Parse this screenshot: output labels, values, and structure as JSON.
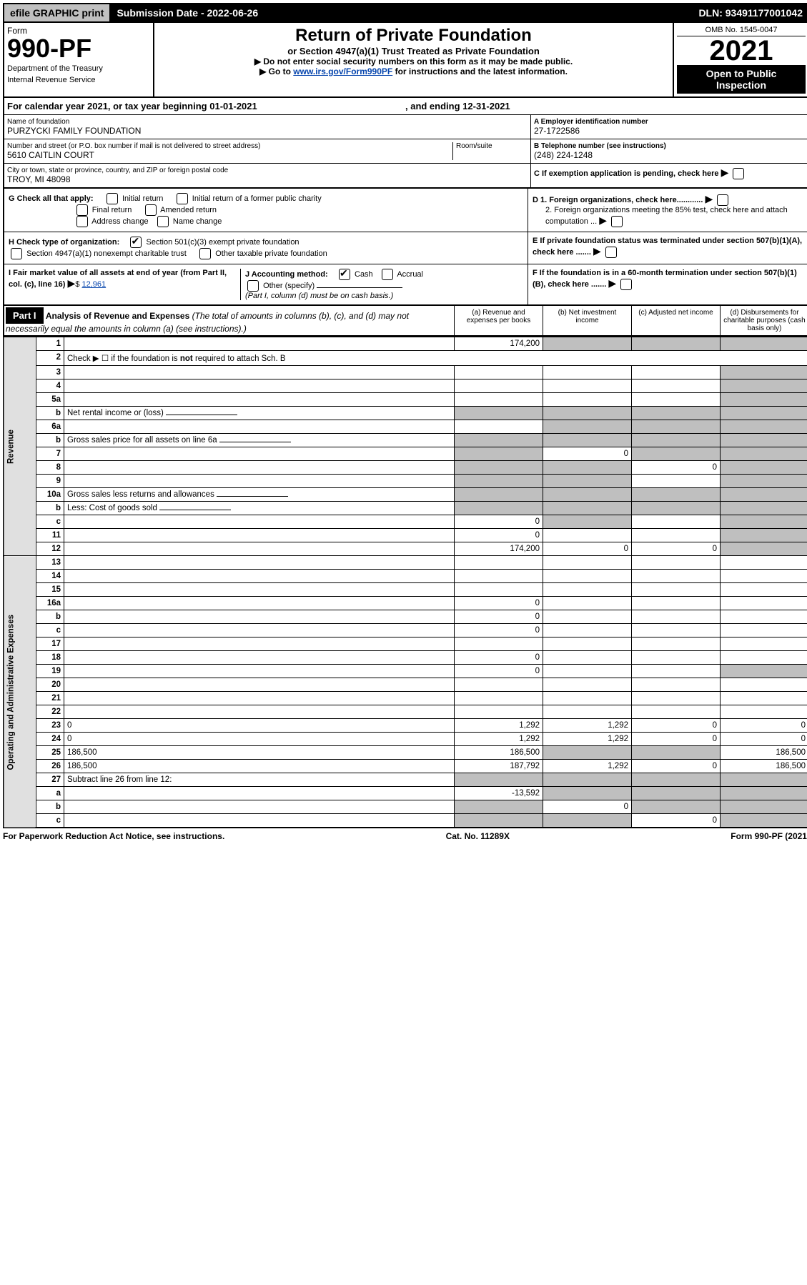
{
  "topbar": {
    "efile": "efile GRAPHIC print",
    "submission": "Submission Date - 2022-06-26",
    "dln": "DLN: 93491177001042"
  },
  "header": {
    "form_label": "Form",
    "form_number": "990-PF",
    "dept1": "Department of the Treasury",
    "dept2": "Internal Revenue Service",
    "title": "Return of Private Foundation",
    "subtitle": "or Section 4947(a)(1) Trust Treated as Private Foundation",
    "instr1": "▶ Do not enter social security numbers on this form as it may be made public.",
    "instr2_pre": "▶ Go to ",
    "instr2_link": "www.irs.gov/Form990PF",
    "instr2_post": " for instructions and the latest information.",
    "omb": "OMB No. 1545-0047",
    "year": "2021",
    "inspection": "Open to Public Inspection"
  },
  "calendar": {
    "text_pre": "For calendar year 2021, or tax year beginning ",
    "begin": "01-01-2021",
    "text_mid": ", and ending ",
    "end": "12-31-2021"
  },
  "entity": {
    "name_label": "Name of foundation",
    "name": "PURZYCKI FAMILY FOUNDATION",
    "addr_label": "Number and street (or P.O. box number if mail is not delivered to street address)",
    "room_label": "Room/suite",
    "addr": "5610 CAITLIN COURT",
    "city_label": "City or town, state or province, country, and ZIP or foreign postal code",
    "city": "TROY, MI  48098",
    "ein_label": "A Employer identification number",
    "ein": "27-1722586",
    "phone_label": "B Telephone number (see instructions)",
    "phone": "(248) 224-1248",
    "c_label": "C If exemption application is pending, check here"
  },
  "checks": {
    "g_label": "G Check all that apply:",
    "g_initial": "Initial return",
    "g_initial2": "Initial return of a former public charity",
    "g_final": "Final return",
    "g_amended": "Amended return",
    "g_addr": "Address change",
    "g_name": "Name change",
    "h_label": "H Check type of organization:",
    "h_501c3": "Section 501(c)(3) exempt private foundation",
    "h_4947": "Section 4947(a)(1) nonexempt charitable trust",
    "h_other": "Other taxable private foundation",
    "i_label": "I Fair market value of all assets at end of year (from Part II, col. (c), line 16)",
    "i_amount": "12,961",
    "j_label": "J Accounting method:",
    "j_cash": "Cash",
    "j_accrual": "Accrual",
    "j_other": "Other (specify)",
    "j_note": "(Part I, column (d) must be on cash basis.)",
    "d1": "D 1. Foreign organizations, check here............",
    "d2": "2. Foreign organizations meeting the 85% test, check here and attach computation ...",
    "e": "E If private foundation status was terminated under section 507(b)(1)(A), check here .......",
    "f": "F If the foundation is in a 60-month termination under section 507(b)(1)(B), check here ......."
  },
  "part1": {
    "label": "Part I",
    "title": "Analysis of Revenue and Expenses",
    "note": "(The total of amounts in columns (b), (c), and (d) may not necessarily equal the amounts in column (a) (see instructions).)",
    "col_a": "(a) Revenue and expenses per books",
    "col_b": "(b) Net investment income",
    "col_c": "(c) Adjusted net income",
    "col_d": "(d) Disbursements for charitable purposes (cash basis only)"
  },
  "revenue_label": "Revenue",
  "expenses_label": "Operating and Administrative Expenses",
  "rows": [
    {
      "n": "1",
      "d": "",
      "a": "174,200",
      "b": "",
      "c": "",
      "grey": [
        "b",
        "c",
        "d"
      ]
    },
    {
      "n": "2",
      "d": "Check ▶ ☐ if the foundation is <b>not</b> required to attach Sch. B",
      "nocols": true
    },
    {
      "n": "3",
      "d": "",
      "a": "",
      "b": "",
      "c": "",
      "grey": [
        "d"
      ]
    },
    {
      "n": "4",
      "d": "",
      "a": "",
      "b": "",
      "c": "",
      "grey": [
        "d"
      ]
    },
    {
      "n": "5a",
      "d": "",
      "a": "",
      "b": "",
      "c": "",
      "grey": [
        "d"
      ]
    },
    {
      "n": "b",
      "d": "Net rental income or (loss)",
      "nocols": true,
      "inline": true
    },
    {
      "n": "6a",
      "d": "",
      "a": "",
      "b": "",
      "c": "",
      "grey": [
        "b",
        "c",
        "d"
      ]
    },
    {
      "n": "b",
      "d": "Gross sales price for all assets on line 6a",
      "nocols": true,
      "inline": true
    },
    {
      "n": "7",
      "d": "",
      "a": "",
      "b": "0",
      "c": "",
      "grey": [
        "a",
        "c",
        "d"
      ]
    },
    {
      "n": "8",
      "d": "",
      "a": "",
      "b": "",
      "c": "0",
      "grey": [
        "a",
        "b",
        "d"
      ]
    },
    {
      "n": "9",
      "d": "",
      "a": "",
      "b": "",
      "c": "",
      "grey": [
        "a",
        "b",
        "d"
      ]
    },
    {
      "n": "10a",
      "d": "Gross sales less returns and allowances",
      "nocols": true,
      "inline": true
    },
    {
      "n": "b",
      "d": "Less: Cost of goods sold",
      "nocols": true,
      "inline": true
    },
    {
      "n": "c",
      "d": "",
      "a": "0",
      "b": "",
      "c": "",
      "grey": [
        "b",
        "d"
      ]
    },
    {
      "n": "11",
      "d": "",
      "a": "0",
      "b": "",
      "c": "",
      "grey": [
        "d"
      ]
    },
    {
      "n": "12",
      "d": "",
      "a": "174,200",
      "b": "0",
      "c": "0",
      "grey": [
        "d"
      ]
    },
    {
      "n": "13",
      "d": "",
      "a": "",
      "b": "",
      "c": ""
    },
    {
      "n": "14",
      "d": "",
      "a": "",
      "b": "",
      "c": ""
    },
    {
      "n": "15",
      "d": "",
      "a": "",
      "b": "",
      "c": ""
    },
    {
      "n": "16a",
      "d": "",
      "a": "0",
      "b": "",
      "c": ""
    },
    {
      "n": "b",
      "d": "",
      "a": "0",
      "b": "",
      "c": ""
    },
    {
      "n": "c",
      "d": "",
      "a": "0",
      "b": "",
      "c": ""
    },
    {
      "n": "17",
      "d": "",
      "a": "",
      "b": "",
      "c": ""
    },
    {
      "n": "18",
      "d": "",
      "a": "0",
      "b": "",
      "c": ""
    },
    {
      "n": "19",
      "d": "",
      "a": "0",
      "b": "",
      "c": "",
      "grey": [
        "d"
      ]
    },
    {
      "n": "20",
      "d": "",
      "a": "",
      "b": "",
      "c": ""
    },
    {
      "n": "21",
      "d": "",
      "a": "",
      "b": "",
      "c": ""
    },
    {
      "n": "22",
      "d": "",
      "a": "",
      "b": "",
      "c": ""
    },
    {
      "n": "23",
      "d": "0",
      "a": "1,292",
      "b": "1,292",
      "c": "0"
    },
    {
      "n": "24",
      "d": "0",
      "a": "1,292",
      "b": "1,292",
      "c": "0"
    },
    {
      "n": "25",
      "d": "186,500",
      "a": "186,500",
      "b": "",
      "c": "",
      "grey": [
        "b",
        "c"
      ]
    },
    {
      "n": "26",
      "d": "186,500",
      "a": "187,792",
      "b": "1,292",
      "c": "0"
    },
    {
      "n": "27",
      "d": "Subtract line 26 from line 12:",
      "nocols": true,
      "allgrey": true
    },
    {
      "n": "a",
      "d": "",
      "a": "-13,592",
      "b": "",
      "c": "",
      "grey": [
        "b",
        "c",
        "d"
      ]
    },
    {
      "n": "b",
      "d": "",
      "a": "",
      "b": "0",
      "c": "",
      "grey": [
        "a",
        "c",
        "d"
      ]
    },
    {
      "n": "c",
      "d": "",
      "a": "",
      "b": "",
      "c": "0",
      "grey": [
        "a",
        "b",
        "d"
      ]
    }
  ],
  "footer": {
    "left": "For Paperwork Reduction Act Notice, see instructions.",
    "mid": "Cat. No. 11289X",
    "right": "Form 990-PF (2021)"
  }
}
